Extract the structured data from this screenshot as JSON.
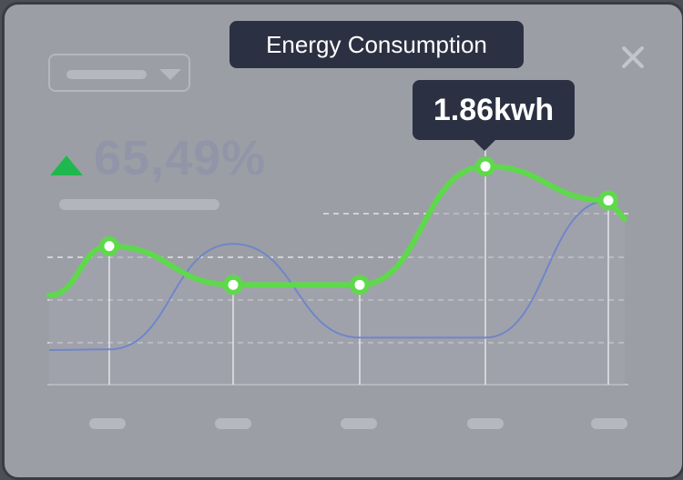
{
  "header": {
    "title": "Energy Consumption",
    "period_dropdown": {
      "selected": ""
    }
  },
  "stats": {
    "change_percent": "65,49%",
    "trend": "up"
  },
  "tooltip": {
    "value_label": "1.86kwh"
  },
  "colors": {
    "background": "#9c9ea6",
    "primary_series": "#5ed94b",
    "secondary_series": "#6f86c9",
    "trend_up": "#1fb84f",
    "tooltip_bg": "#2b3142"
  },
  "icons": [
    "chevron-down-icon",
    "close-icon",
    "triangle-up-icon"
  ],
  "chart_data": {
    "type": "line",
    "title": "Energy Consumption",
    "x": [
      1,
      2,
      3,
      4,
      5
    ],
    "ylim": [
      0,
      3
    ],
    "grid": true,
    "series": [
      {
        "values": [
          1.18,
          0.85,
          0.85,
          1.86,
          1.57
        ]
      },
      {
        "values": [
          0.3,
          1.2,
          0.4,
          0.4,
          1.57
        ]
      }
    ],
    "highlight_index": 3
  }
}
